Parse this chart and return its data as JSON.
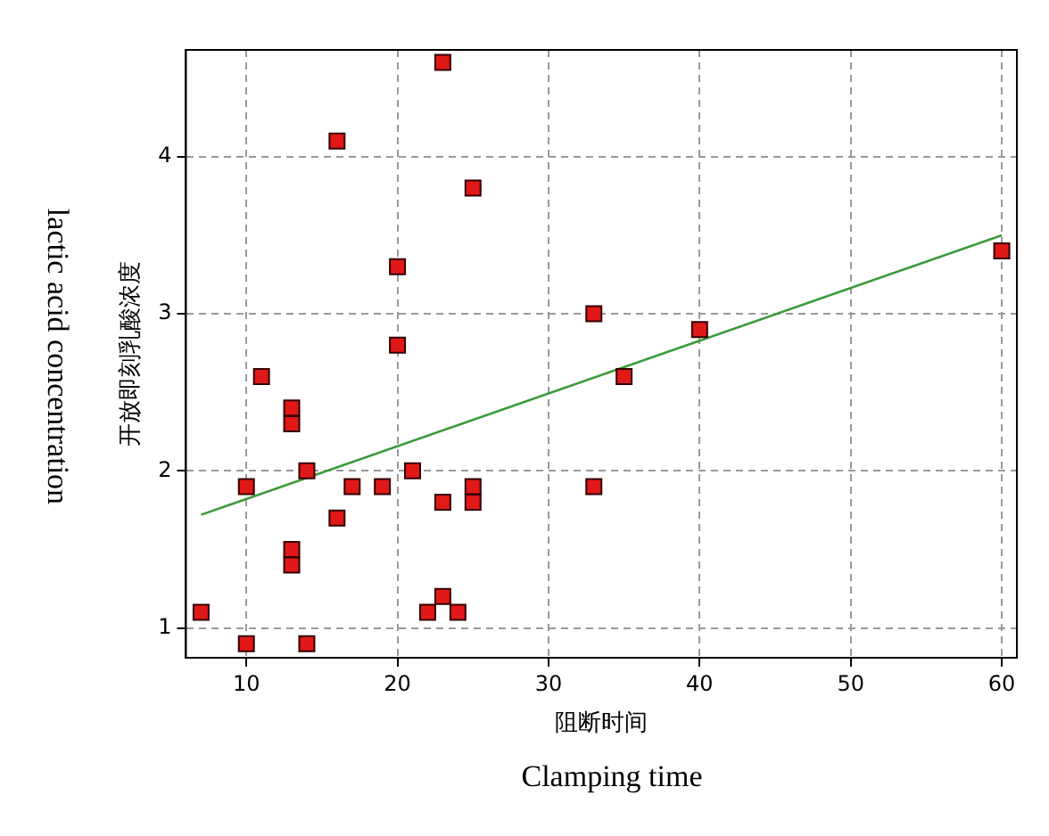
{
  "chart_data": {
    "type": "scatter",
    "xlabel": "阻断时间",
    "ylabel": "开放即刻乳酸浓度",
    "annotations": [
      "Clamping time",
      "lactic acid concentration"
    ],
    "xlim": [
      6,
      61
    ],
    "ylim": [
      0.81,
      4.68
    ],
    "xticks": [
      10,
      20,
      30,
      40,
      50,
      60
    ],
    "yticks": [
      1,
      2,
      3,
      4
    ],
    "grid": true,
    "series": [
      {
        "marker": "square",
        "color": "#e01818",
        "x": [
          7,
          10,
          10,
          11,
          13,
          13,
          13,
          13,
          14,
          14,
          16,
          16,
          17,
          19,
          20,
          20,
          21,
          22,
          23,
          23,
          23,
          24,
          25,
          25,
          25,
          33,
          33,
          35,
          40,
          60
        ],
        "values": [
          1.1,
          0.9,
          1.9,
          2.6,
          2.4,
          2.3,
          1.5,
          1.4,
          2.0,
          0.9,
          4.1,
          1.7,
          1.9,
          1.9,
          3.3,
          2.8,
          2.0,
          1.1,
          4.6,
          1.8,
          1.2,
          1.1,
          3.8,
          1.9,
          1.8,
          3.0,
          1.9,
          2.6,
          2.9,
          3.4
        ]
      },
      {
        "type": "line",
        "marker": "none",
        "color": "#3a9a3a",
        "x": [
          7,
          60
        ],
        "values": [
          1.72,
          3.5
        ]
      }
    ]
  }
}
